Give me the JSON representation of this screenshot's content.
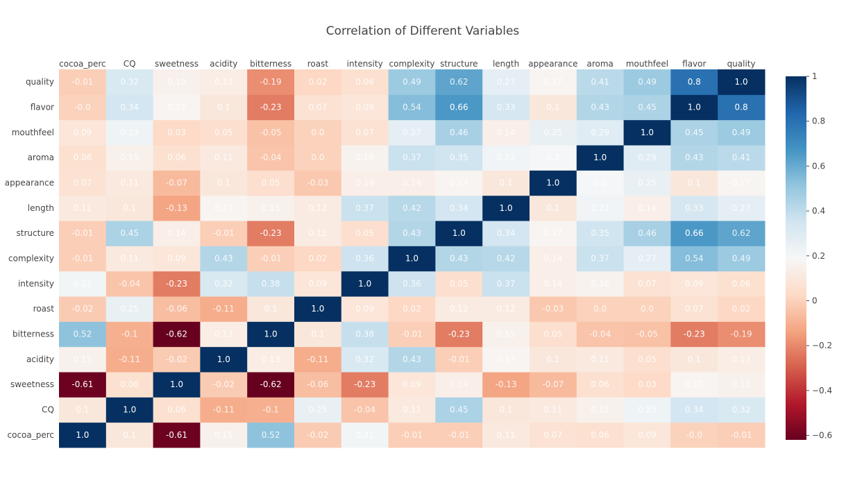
{
  "chart_data": {
    "type": "heatmap",
    "title": "Correlation of Different Variables",
    "x_labels": [
      "cocoa_perc",
      "CQ",
      "sweetness",
      "acidity",
      "bitterness",
      "roast",
      "intensity",
      "complexity",
      "structure",
      "length",
      "appearance",
      "aroma",
      "mouthfeel",
      "flavor",
      "quality"
    ],
    "y_labels": [
      "cocoa_perc",
      "CQ",
      "sweetness",
      "acidity",
      "bitterness",
      "roast",
      "intensity",
      "complexity",
      "structure",
      "length",
      "appearance",
      "aroma",
      "mouthfeel",
      "flavor",
      "quality"
    ],
    "z": [
      [
        "1.0",
        "0.1",
        "-0.61",
        "0.15",
        "0.52",
        "-0.02",
        "0.21",
        "-0.01",
        "-0.01",
        "0.11",
        "0.07",
        "0.06",
        "0.09",
        "-0.0",
        "-0.01"
      ],
      [
        "0.1",
        "1.0",
        "0.06",
        "-0.11",
        "-0.1",
        "0.25",
        "-0.04",
        "0.11",
        "0.45",
        "0.1",
        "0.11",
        "0.15",
        "0.23",
        "0.34",
        "0.32"
      ],
      [
        "-0.61",
        "0.06",
        "1.0",
        "-0.02",
        "-0.62",
        "-0.06",
        "-0.23",
        "0.09",
        "0.14",
        "-0.13",
        "-0.07",
        "0.06",
        "0.03",
        "0.17",
        "0.15"
      ],
      [
        "0.15",
        "-0.11",
        "-0.02",
        "1.0",
        "0.13",
        "-0.11",
        "0.32",
        "0.43",
        "-0.01",
        "0.17",
        "0.1",
        "0.11",
        "0.05",
        "0.1",
        "0.13"
      ],
      [
        "0.52",
        "-0.1",
        "-0.62",
        "0.13",
        "1.0",
        "0.1",
        "0.38",
        "-0.01",
        "-0.23",
        "0.15",
        "0.05",
        "-0.04",
        "-0.05",
        "-0.23",
        "-0.19"
      ],
      [
        "-0.02",
        "0.25",
        "-0.06",
        "-0.11",
        "0.1",
        "1.0",
        "0.09",
        "0.02",
        "0.12",
        "0.12",
        "-0.03",
        "0.0",
        "0.0",
        "0.07",
        "0.02"
      ],
      [
        "0.21",
        "-0.04",
        "-0.23",
        "0.32",
        "0.38",
        "0.09",
        "1.0",
        "0.36",
        "0.05",
        "0.37",
        "0.14",
        "0.16",
        "0.07",
        "0.09",
        "0.06"
      ],
      [
        "-0.01",
        "0.11",
        "0.09",
        "0.43",
        "-0.01",
        "0.02",
        "0.36",
        "1.0",
        "0.43",
        "0.42",
        "0.14",
        "0.37",
        "0.27",
        "0.54",
        "0.49"
      ],
      [
        "-0.01",
        "0.45",
        "0.14",
        "-0.01",
        "-0.23",
        "0.12",
        "0.05",
        "0.43",
        "1.0",
        "0.34",
        "0.17",
        "0.35",
        "0.46",
        "0.66",
        "0.62"
      ],
      [
        "0.11",
        "0.1",
        "-0.13",
        "0.17",
        "0.15",
        "0.12",
        "0.37",
        "0.42",
        "0.34",
        "1.0",
        "0.1",
        "0.22",
        "0.14",
        "0.33",
        "0.27"
      ],
      [
        "0.07",
        "0.11",
        "-0.07",
        "0.1",
        "0.05",
        "-0.03",
        "0.14",
        "0.14",
        "0.17",
        "0.1",
        "1.0",
        "0.2",
        "0.25",
        "0.1",
        "0.17"
      ],
      [
        "0.06",
        "0.15",
        "0.06",
        "0.11",
        "-0.04",
        "0.0",
        "0.16",
        "0.37",
        "0.35",
        "0.22",
        "0.2",
        "1.0",
        "0.29",
        "0.43",
        "0.41"
      ],
      [
        "0.09",
        "0.23",
        "0.03",
        "0.05",
        "-0.05",
        "0.0",
        "0.07",
        "0.27",
        "0.46",
        "0.14",
        "0.25",
        "0.29",
        "1.0",
        "0.45",
        "0.49"
      ],
      [
        "-0.0",
        "0.34",
        "0.17",
        "0.1",
        "-0.23",
        "0.07",
        "0.09",
        "0.54",
        "0.66",
        "0.33",
        "0.1",
        "0.43",
        "0.45",
        "1.0",
        "0.8"
      ],
      [
        "-0.01",
        "0.32",
        "0.15",
        "0.13",
        "-0.19",
        "0.02",
        "0.06",
        "0.49",
        "0.62",
        "0.27",
        "0.17",
        "0.41",
        "0.49",
        "0.8",
        "1.0"
      ]
    ],
    "zmin": -0.62,
    "zmax": 1.0,
    "colorscale": "RdBu",
    "colorscale_stops": [
      [
        0.0,
        "#67001f"
      ],
      [
        0.1,
        "#b2182b"
      ],
      [
        0.2,
        "#d6604d"
      ],
      [
        0.3,
        "#f4a582"
      ],
      [
        0.4,
        "#fddbc7"
      ],
      [
        0.5,
        "#f7f7f7"
      ],
      [
        0.6,
        "#d1e5f0"
      ],
      [
        0.7,
        "#92c5de"
      ],
      [
        0.8,
        "#4393c3"
      ],
      [
        0.9,
        "#2166ac"
      ],
      [
        1.0,
        "#053061"
      ]
    ],
    "colorbar_ticks": [
      "1",
      "0.8",
      "0.6",
      "0.4",
      "0.2",
      "0",
      "−0.2",
      "−0.4",
      "−0.6"
    ],
    "colorbar_tick_values": [
      1,
      0.8,
      0.6,
      0.4,
      0.2,
      0,
      -0.2,
      -0.4,
      -0.6
    ],
    "x_axis_side": "top",
    "y_order": "bottom-to-top",
    "grid": false,
    "legend": "colorbar-right"
  }
}
